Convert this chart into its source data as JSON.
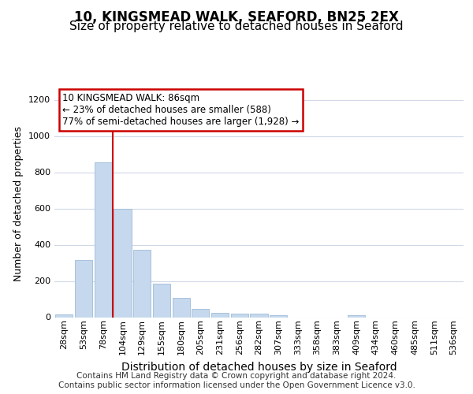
{
  "title": "10, KINGSMEAD WALK, SEAFORD, BN25 2EX",
  "subtitle": "Size of property relative to detached houses in Seaford",
  "xlabel": "Distribution of detached houses by size in Seaford",
  "ylabel": "Number of detached properties",
  "bin_labels": [
    "28sqm",
    "53sqm",
    "78sqm",
    "104sqm",
    "129sqm",
    "155sqm",
    "180sqm",
    "205sqm",
    "231sqm",
    "256sqm",
    "282sqm",
    "307sqm",
    "333sqm",
    "358sqm",
    "383sqm",
    "409sqm",
    "434sqm",
    "460sqm",
    "485sqm",
    "511sqm",
    "536sqm"
  ],
  "bar_values": [
    15,
    315,
    855,
    600,
    370,
    185,
    105,
    47,
    22,
    18,
    20,
    10,
    0,
    0,
    0,
    10,
    0,
    0,
    0,
    0,
    0
  ],
  "bar_color": "#c5d8ed",
  "bar_edgecolor": "#a0bcd8",
  "ref_line_index": 2.5,
  "ylim": [
    0,
    1250
  ],
  "yticks": [
    0,
    200,
    400,
    600,
    800,
    1000,
    1200
  ],
  "annotation_text": "10 KINGSMEAD WALK: 86sqm\n← 23% of detached houses are smaller (588)\n77% of semi-detached houses are larger (1,928) →",
  "annotation_box_facecolor": "#ffffff",
  "annotation_box_edgecolor": "#cc0000",
  "ref_line_color": "#cc0000",
  "background_color": "#ffffff",
  "grid_color": "#d0d8e8",
  "footer_text": "Contains HM Land Registry data © Crown copyright and database right 2024.\nContains public sector information licensed under the Open Government Licence v3.0.",
  "title_fontsize": 12,
  "subtitle_fontsize": 11,
  "xlabel_fontsize": 10,
  "ylabel_fontsize": 9,
  "tick_fontsize": 8,
  "footer_fontsize": 7.5
}
